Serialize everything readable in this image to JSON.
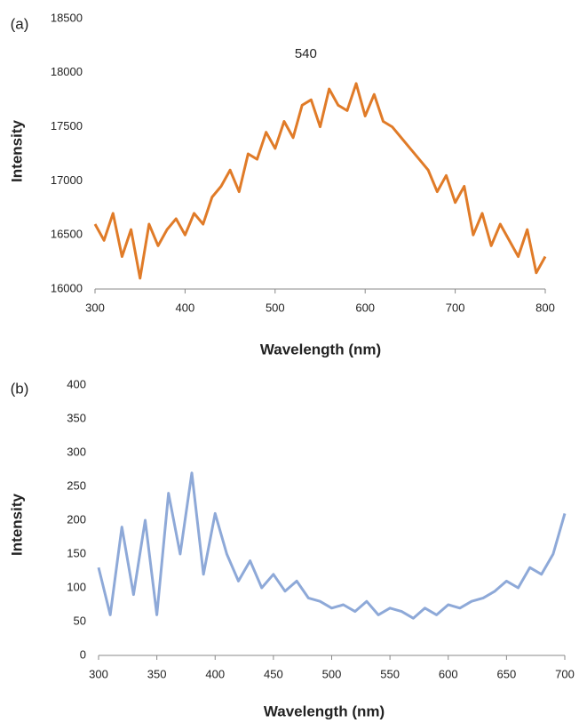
{
  "chart_data": [
    {
      "type": "line",
      "label": "(a)",
      "annotation": "540",
      "annotation_x": 540,
      "xlabel": "Wavelength (nm)",
      "ylabel": "Intensity",
      "color": "#e07b28",
      "x": [
        300,
        310,
        320,
        330,
        340,
        350,
        360,
        370,
        380,
        390,
        400,
        410,
        420,
        430,
        440,
        450,
        460,
        470,
        480,
        490,
        500,
        510,
        520,
        530,
        540,
        550,
        560,
        570,
        580,
        590,
        600,
        610,
        620,
        630,
        640,
        650,
        660,
        670,
        680,
        690,
        700,
        710,
        720,
        730,
        740,
        750,
        760,
        770,
        780,
        790,
        800
      ],
      "values": [
        16600,
        16450,
        16700,
        16300,
        16550,
        16100,
        16600,
        16400,
        16550,
        16650,
        16500,
        16700,
        16600,
        16850,
        16950,
        17100,
        16900,
        17250,
        17200,
        17450,
        17300,
        17550,
        17400,
        17700,
        17750,
        17500,
        17850,
        17700,
        17650,
        17900,
        17600,
        17800,
        17550,
        17500,
        17400,
        17300,
        17200,
        17100,
        16900,
        17050,
        16800,
        16950,
        16500,
        16700,
        16400,
        16600,
        16450,
        16300,
        16550,
        16150,
        16300
      ],
      "xlim": [
        300,
        800
      ],
      "xticks": [
        300,
        400,
        500,
        600,
        700,
        800
      ],
      "ylim": [
        16000,
        18500
      ],
      "yticks": [
        16000,
        16500,
        17000,
        17500,
        18000,
        18500
      ]
    },
    {
      "type": "line",
      "label": "(b)",
      "xlabel": "Wavelength (nm)",
      "ylabel": "Intensity",
      "color": "#8ea9d8",
      "x": [
        300,
        310,
        320,
        330,
        340,
        350,
        360,
        370,
        380,
        390,
        400,
        410,
        420,
        430,
        440,
        450,
        460,
        470,
        480,
        490,
        500,
        510,
        520,
        530,
        540,
        550,
        560,
        570,
        580,
        590,
        600,
        610,
        620,
        630,
        640,
        650,
        660,
        670,
        680,
        690,
        700
      ],
      "values": [
        130,
        60,
        190,
        90,
        200,
        60,
        240,
        150,
        270,
        120,
        210,
        150,
        110,
        140,
        100,
        120,
        95,
        110,
        85,
        80,
        70,
        75,
        65,
        80,
        60,
        70,
        65,
        55,
        70,
        60,
        75,
        70,
        80,
        85,
        95,
        110,
        100,
        130,
        120,
        150,
        210
      ],
      "xlim": [
        300,
        700
      ],
      "xticks": [
        300,
        350,
        400,
        450,
        500,
        550,
        600,
        650,
        700
      ],
      "ylim": [
        0,
        400
      ],
      "yticks": [
        0,
        50,
        100,
        150,
        200,
        250,
        300,
        350,
        400
      ]
    }
  ]
}
